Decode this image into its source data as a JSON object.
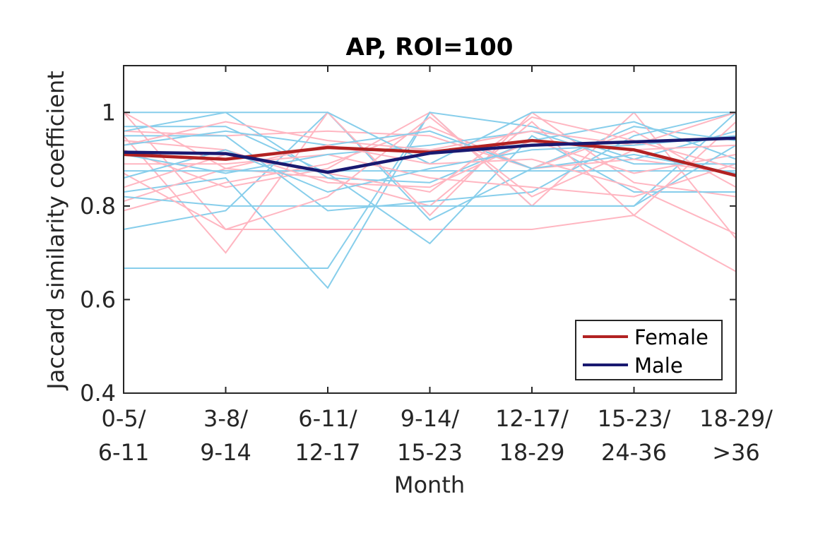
{
  "chart_data": {
    "type": "line",
    "title": "AP, ROI=100",
    "xlabel": "Month",
    "ylabel": "Jaccard similarity coefficient",
    "categories": [
      [
        "0-5/",
        "6-11"
      ],
      [
        "3-8/",
        "9-14"
      ],
      [
        "6-11/",
        "12-17"
      ],
      [
        "9-14/",
        "15-23"
      ],
      [
        "12-17/",
        "18-29"
      ],
      [
        "15-23/",
        "24-36"
      ],
      [
        "18-29/",
        ">36"
      ]
    ],
    "ylim": [
      0.4,
      1.1
    ],
    "yticks": [
      0.4,
      0.6,
      0.8,
      1
    ],
    "ytick_labels": [
      "0.4",
      "0.6",
      "0.8",
      "1"
    ],
    "grid": false,
    "legend_position": "bottom-right",
    "colors": {
      "female_mean": "#b22222",
      "male_mean": "#191970",
      "female_individual": "#ffb6c1",
      "male_individual": "#87ceeb",
      "axes": "#262626"
    },
    "series": [
      {
        "name": "Female",
        "values": [
          0.91,
          0.9,
          0.925,
          0.915,
          0.94,
          0.92,
          0.865
        ]
      },
      {
        "name": "Male",
        "values": [
          0.915,
          0.912,
          0.872,
          0.913,
          0.93,
          0.937,
          0.945
        ]
      }
    ],
    "individual_female": [
      [
        1.0,
        0.75,
        0.75,
        0.75,
        0.75,
        0.78,
        0.66
      ],
      [
        0.95,
        0.7,
        1.0,
        0.78,
        1.0,
        0.85,
        0.82
      ],
      [
        0.92,
        0.84,
        0.88,
        1.0,
        0.8,
        1.0,
        0.73
      ],
      [
        0.96,
        0.95,
        0.96,
        0.95,
        0.88,
        0.96,
        0.84
      ],
      [
        0.81,
        0.88,
        0.86,
        0.8,
        0.98,
        0.78,
        0.98
      ],
      [
        0.79,
        0.85,
        0.89,
        0.97,
        0.88,
        0.9,
        0.87
      ],
      [
        0.94,
        0.92,
        0.85,
        0.84,
        0.94,
        0.87,
        0.91
      ],
      [
        0.89,
        0.89,
        0.91,
        0.86,
        0.84,
        0.82,
        0.89
      ],
      [
        0.93,
        0.98,
        0.94,
        0.92,
        0.96,
        0.93,
        1.0
      ],
      [
        0.87,
        0.75,
        0.82,
        0.99,
        0.82,
        0.92,
        0.93
      ],
      [
        1.0,
        0.88,
        0.93,
        0.89,
        0.9,
        0.84,
        0.74
      ],
      [
        0.84,
        0.91,
        0.87,
        0.83,
        0.99,
        0.94,
        0.88
      ]
    ],
    "individual_male": [
      [
        0.667,
        0.667,
        0.667,
        1.0,
        0.8,
        0.8,
        1.0
      ],
      [
        0.75,
        0.79,
        1.0,
        0.77,
        0.88,
        0.97,
        0.94
      ],
      [
        0.97,
        0.97,
        0.87,
        0.72,
        0.95,
        0.83,
        0.83
      ],
      [
        0.83,
        0.86,
        0.625,
        1.0,
        0.97,
        0.9,
        0.96
      ],
      [
        0.95,
        0.95,
        0.79,
        0.81,
        0.83,
        0.95,
        1.0
      ],
      [
        0.96,
        1.0,
        0.86,
        0.85,
        0.94,
        0.98,
        0.9
      ],
      [
        0.875,
        0.875,
        0.875,
        0.875,
        0.875,
        0.875,
        0.875
      ],
      [
        0.82,
        0.8,
        0.8,
        0.8,
        0.8,
        0.8,
        0.93
      ],
      [
        0.91,
        0.87,
        0.91,
        0.93,
        0.96,
        0.89,
        0.89
      ],
      [
        1.0,
        1.0,
        1.0,
        0.89,
        1.0,
        1.0,
        1.0
      ],
      [
        0.93,
        0.96,
        0.93,
        0.96,
        0.88,
        0.91,
        0.87
      ],
      [
        0.86,
        0.92,
        0.83,
        0.88,
        0.92,
        0.93,
        0.95
      ]
    ]
  }
}
